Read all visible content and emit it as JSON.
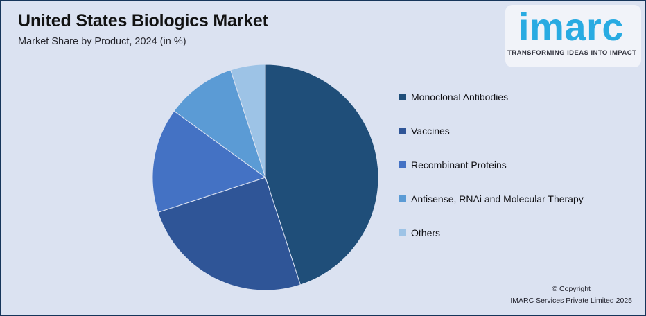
{
  "header": {
    "title": "United States Biologics Market",
    "subtitle": "Market Share by Product, 2024 (in %)"
  },
  "logo": {
    "wordmark": "imarc",
    "tagline": "TRANSFORMING IDEAS INTO IMPACT",
    "brand_color": "#29abe2"
  },
  "chart_data": {
    "type": "pie",
    "title": "United States Biologics Market",
    "subtitle": "Market Share by Product, 2024 (in %)",
    "unit": "%",
    "labels": [
      "Monoclonal Antibodies",
      "Vaccines",
      "Recombinant Proteins",
      "Antisense, RNAi and Molecular Therapy",
      "Others"
    ],
    "values": [
      45,
      25,
      15,
      10,
      5
    ],
    "colors": [
      "#1f4e79",
      "#2f5597",
      "#4472c4",
      "#5b9bd5",
      "#9dc3e6"
    ],
    "start_angle_deg": 0,
    "direction": "clockwise",
    "legend_position": "right",
    "data_labels": false
  },
  "footer": {
    "copyright_line1": "© Copyright",
    "copyright_line2": "IMARC Services Private Limited 2025"
  },
  "canvas": {
    "background": "#dbe2f1",
    "border_color": "#16355a"
  }
}
